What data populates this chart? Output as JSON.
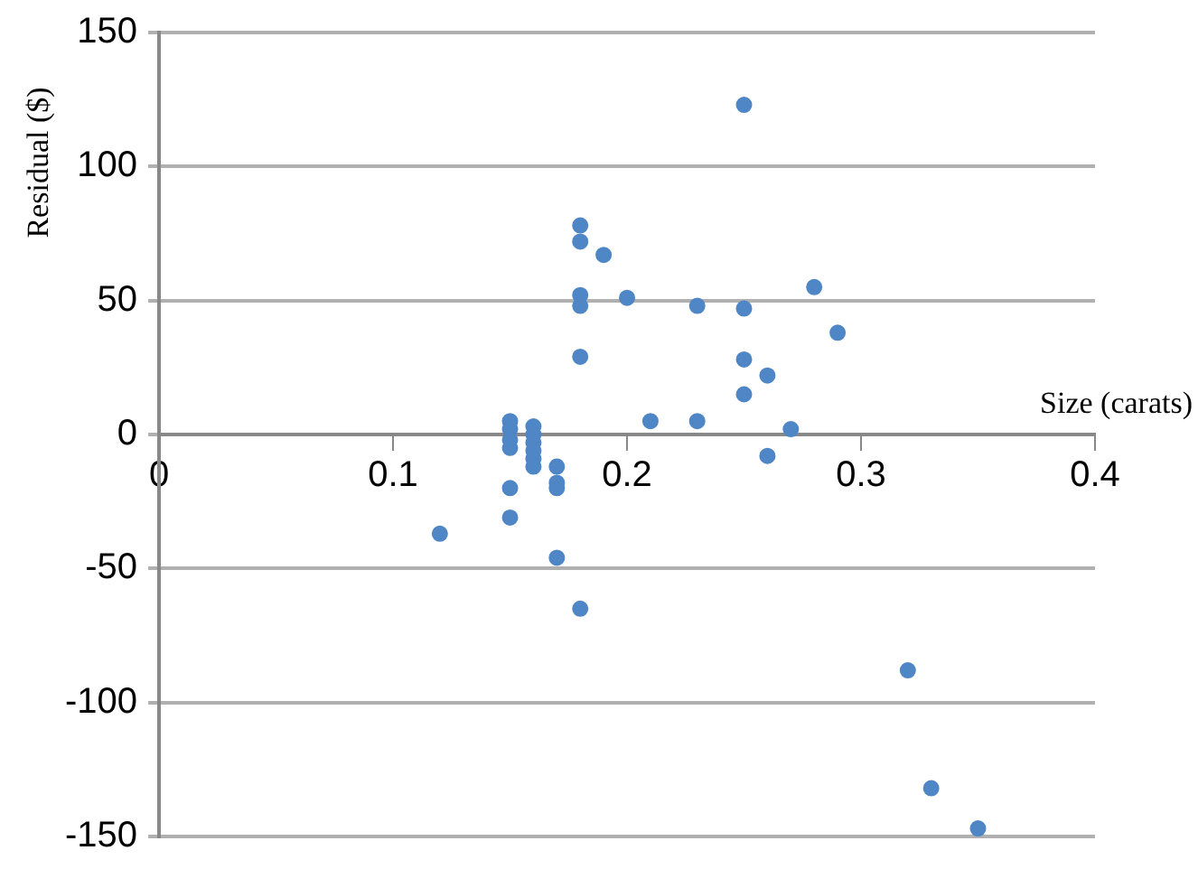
{
  "chart_data": {
    "type": "scatter",
    "xlabel": "Size (carats)",
    "ylabel": "Residual ($)",
    "xlim": [
      0,
      0.4
    ],
    "xticks": [
      0,
      0.1,
      0.2,
      0.3,
      0.4
    ],
    "ylim": [
      -150,
      150
    ],
    "yticks": [
      -150,
      -100,
      -50,
      0,
      50,
      100,
      150
    ],
    "grid": "y",
    "legend": false,
    "marker": "circle",
    "series": [
      {
        "color": "#4f86c6",
        "x": [
          0.12,
          0.15,
          0.15,
          0.15,
          0.15,
          0.15,
          0.15,
          0.16,
          0.16,
          0.16,
          0.16,
          0.16,
          0.16,
          0.17,
          0.17,
          0.17,
          0.17,
          0.18,
          0.18,
          0.18,
          0.18,
          0.18,
          0.18,
          0.19,
          0.2,
          0.21,
          0.23,
          0.23,
          0.25,
          0.25,
          0.25,
          0.25,
          0.26,
          0.26,
          0.27,
          0.28,
          0.29,
          0.32,
          0.33,
          0.35
        ],
        "values": [
          -37,
          5,
          2,
          -2,
          -5,
          -20,
          -31,
          3,
          0,
          -3,
          -6,
          -9,
          -12,
          -12,
          -18,
          -20,
          -46,
          78,
          72,
          52,
          48,
          29,
          -65,
          67,
          51,
          5,
          48,
          5,
          123,
          47,
          28,
          15,
          22,
          -8,
          2,
          55,
          38,
          -88,
          -132,
          -147
        ]
      }
    ]
  }
}
